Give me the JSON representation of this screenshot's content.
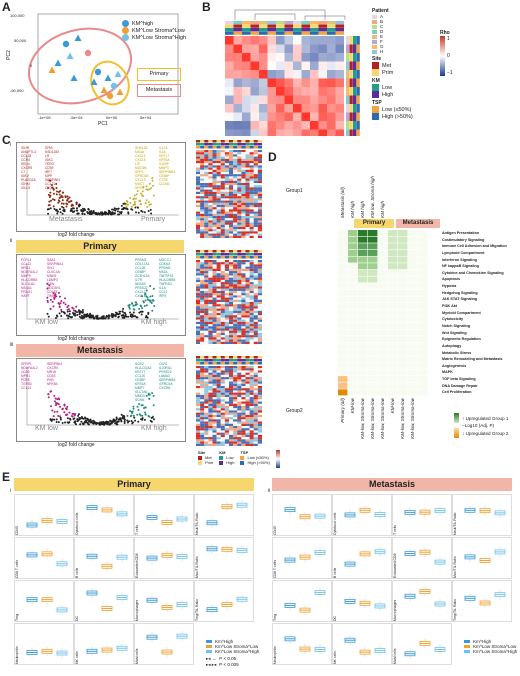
{
  "panels": {
    "A": "A",
    "B": "B",
    "C": "C",
    "D": "D",
    "E": "E"
  },
  "panelA": {
    "yticks": [
      "100,000",
      "50,000",
      "0",
      "-50,000"
    ],
    "xticks": [
      "-1e+05",
      "-5e+04",
      "0e+00",
      "5e+04"
    ],
    "xlabel": "PC1",
    "ylabel": "PC2",
    "legend": [
      "KM^high",
      "KM^Low Stroma^Low",
      "KM^Low Stroma^High"
    ],
    "group_boxes": [
      "Primary",
      "Metastasis"
    ]
  },
  "panelB": {
    "legend_title_patient": "Patient",
    "patients": [
      "A",
      "B",
      "C",
      "D",
      "E",
      "F",
      "G",
      "H"
    ],
    "legend_title_site": "Site",
    "sites": [
      "Met",
      "Prim"
    ],
    "legend_title_km": "KM",
    "km": [
      "Low",
      "High"
    ],
    "legend_title_tsp": "TSP",
    "tsp": [
      "Low (≤50%)",
      "High (>50%)"
    ],
    "rho_label": "Rho",
    "rho_ticks": [
      "1",
      "0",
      "−1"
    ],
    "row_annot": [
      "Patient",
      "Site",
      "KM",
      "TSP"
    ]
  },
  "panelC": {
    "sub_i": "i",
    "sub_ii": "ii",
    "sub_iii": "iii",
    "ylabel": "-log10 Padj",
    "xlabel": "log2 fold change",
    "i_left": "Metastasis",
    "i_right": "Primary",
    "ii_banner": "Primary",
    "ii_left": "KM low",
    "ii_right": "KM high",
    "iii_banner": "Metastasis",
    "iii_left": "KM low",
    "iii_right": "KM high",
    "xticks": [
      "-5.0",
      "-2.5",
      "0.0",
      "2.5",
      "5.0"
    ],
    "genes_i_left1": "IGHR\nANGPTL4\nCCL18\nCCR4\nSELN\nCXCR5\nC7\nIGKV\nPLA2G2A\nIGHM\nIGLL5",
    "genes_i_left2": "SPIB\nKSD1183\nLR\nIGKC\nTERO\nCD59\nIRF7\nMPP\nSERPINI4\nCCL21\nC1QA",
    "genes_i_right1": "SNX128\nMS4A\nCXCL1\nCXCL5\nLIF\nMUC5B\nSPP1\nGPRC5A\nCXCL3\nMUC7\nSPSN",
    "genes_i_right2": "IL17A\nIL1A\nKRT17\nKRT6A\nS100P\nMMP3\nSERPINB4\nCEMIP\nCTSE\nCLDN1",
    "genes_ii_left1": "FCRL1\nCCL21\nHRG1\nNDUFA4L2\nMMP9\nHLA-DRB5\nSLC11A1\nMS4A1\nPRAG1\nHAPT",
    "genes_ii_left2": "SAA1\nSERPINA1\nSIX1\nCLEC4A\nMIWI1\nLAMP3\nIL6N\nHDCSR1\nCD163\nTIMP1",
    "genes_ii_right1": "PRDM1\nCOL17A1\nCCL26\nCEMIP\nZC3H12A\nIL7R\nNR4A3\nPRSS22\nCXCL1\nCXCL14",
    "genes_ii_right2": "MGCC1\nCDKN2\nPRDM1\nMIGA\nTNFSF15\nHLA-DRB5\nTNFRS4\nIL1A\nCCL1\nIRF5",
    "genes_iii_left1": "SFRP1\nNDUFA4L2\nCD36\nMPR1\nPDF8\nTGFB3\nCCL21",
    "genes_iii_left2": "SERPINI4\nCXCR5\nMR18\nCD53\nPKB\nNFKB4",
    "genes_iii_right1": "SOX2\nHLA-DQA2\nKRT17\nCCL20\nCEMIP\nKRT6A\nMMP7\nSLC7A6\nMMD3\nSCNN",
    "genes_iii_right2": "OLR1\nIL20RA1\nPRSS22\nLAMA3\nSERPINB5\nGPRC5A\nCXCR6"
  },
  "panelC_heat_legend": {
    "site_title": "Site",
    "site_items": [
      "Met",
      "Prim"
    ],
    "km_title": "KM",
    "km_items": [
      "Low",
      "High"
    ],
    "tsp_title": "TSP",
    "tsp_items": [
      "Low (≤50%)",
      "High (>50%)"
    ]
  },
  "panelD": {
    "group1": "Group1",
    "group2": "Group2",
    "banner_primary": "Primary",
    "banner_metastasis": "Metastasis",
    "top_cols": [
      "Metastasis (all)",
      "KM high",
      "KM high",
      "KM low, Stroma high",
      "KM high"
    ],
    "bottom_cols": [
      "Primary (all)",
      "KM-low",
      "KM-low, Stroma-low",
      "KM-low, Stroma-low",
      "KM-low, Stroma-low",
      "KM-low",
      "KM-low, Stroma-low",
      "KM-low, Stroma-low"
    ],
    "pathways": [
      "Antigen Presentation",
      "Costimulatory Signaling",
      "Immune Cell Adhesion and Migration",
      "Lymphoid Compartment",
      "Interferon Signaling",
      "NF kappaB Signaling",
      "Cytokine and Chemokine Signaling",
      "Apoptosis",
      "Hypoxia",
      "Hedgehog Signaling",
      "JAK STAT Signaling",
      "PI3K Akt",
      "Myeloid Compartment",
      "Cytotoxicity",
      "Notch Signaling",
      "Wnt Signaling",
      "Epigenetic Regulation",
      "Autophagy",
      "Metabolic Stress",
      "Matrix Remodeling and Metastasis",
      "Angiogenesis",
      "MAPK",
      "TGF beta Signaling",
      "DNA Damage Repair",
      "Cell Proliferation"
    ],
    "legend_up1": "↑ Upregulated Group 1",
    "legend_log": "−Log10 (Adj. P)",
    "legend_up2": "↓ Upregulated Group 2"
  },
  "panelE": {
    "sub_i": "i",
    "sub_ii": "ii",
    "banner_primary": "Primary",
    "banner_metastasis": "Metastasis",
    "primary_cells": [
      [
        "CD45",
        "Cytotoxic cells",
        "T cells",
        "Neut/TIL Ratio"
      ],
      [
        "CD8 T cells",
        "B cells",
        "Exhausted CD8",
        "Mac/TIL Ratio"
      ],
      [
        "Treg",
        "DC",
        "Macrophages",
        "Treg/TIL Ratio"
      ],
      [
        "Neutrophils",
        "NK cells",
        "Mast cells",
        ""
      ]
    ],
    "met_cells": [
      [
        "CD45",
        "Cytotoxic cells",
        "T cells",
        "Neut/TIL Ratio"
      ],
      [
        "CD8 T cells",
        "B cells",
        "Exhausted CD8",
        "Mac/TIL Ratio"
      ],
      [
        "Treg",
        "DC",
        "Macrophages",
        "Treg/TIL Ratio"
      ],
      [
        "Neutrophils",
        "NK cells",
        "Mast cells",
        ""
      ]
    ],
    "legend": [
      "Km^High",
      "Km^Low Stroma^Low",
      "Km^Low Stroma^High"
    ],
    "sig1": "P < 0.05",
    "sig2": "P < 0.005",
    "sig1_glyph": "▸◂ →",
    "sig2_glyph": "▸◂ ▸◂",
    "asterisk": "*"
  },
  "colors": {
    "km_high": "#3b9ad6",
    "km_low_stroma_low": "#f0a030",
    "km_low_stroma_high": "#6fc3e8",
    "primary_yellow": "#f5d76e",
    "metastasis_pink": "#f2b6a8",
    "heat_red": "#d73027",
    "heat_blue": "#1a3b8f",
    "green": "#3f9a3f"
  }
}
